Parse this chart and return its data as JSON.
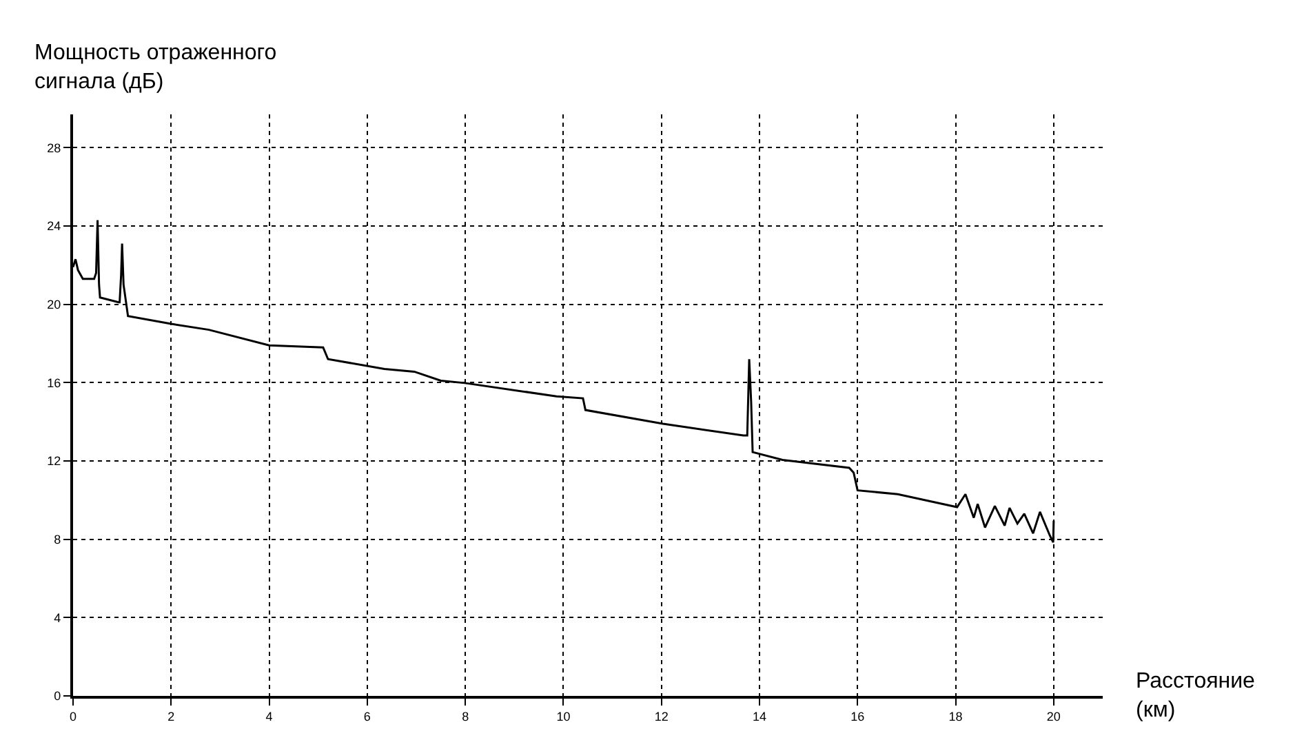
{
  "chart_data": {
    "type": "line",
    "xlabel": "Расстояние\n(км)",
    "ylabel": "Мощность отраженного\nсигнала (дБ)",
    "x": [
      0.0,
      0.05,
      0.1,
      0.2,
      0.43,
      0.47,
      0.5,
      0.53,
      0.55,
      0.93,
      0.95,
      0.98,
      1.0,
      1.03,
      1.12,
      2.0,
      2.77,
      4.0,
      5.1,
      5.2,
      6.35,
      6.96,
      7.5,
      7.99,
      9.86,
      10.4,
      10.45,
      12.03,
      13.67,
      13.75,
      13.79,
      13.83,
      13.86,
      14.47,
      15.83,
      15.92,
      16.0,
      16.82,
      18.03,
      18.2,
      18.37,
      18.45,
      18.6,
      18.8,
      19.0,
      19.1,
      19.26,
      19.4,
      19.58,
      19.72,
      19.92,
      19.99,
      20.0
    ],
    "values": [
      21.9,
      22.3,
      21.75,
      21.3,
      21.3,
      21.6,
      24.3,
      21.0,
      20.35,
      20.1,
      20.1,
      21.5,
      23.1,
      21.0,
      19.4,
      19.0,
      18.7,
      17.9,
      17.8,
      17.2,
      16.7,
      16.56,
      16.1,
      15.98,
      15.3,
      15.2,
      14.6,
      13.9,
      13.3,
      13.3,
      17.2,
      15.0,
      12.45,
      12.05,
      11.65,
      11.4,
      10.5,
      10.3,
      9.64,
      10.3,
      9.1,
      9.8,
      8.6,
      9.7,
      8.7,
      9.6,
      8.8,
      9.3,
      8.3,
      9.4,
      8.2,
      7.84,
      8.95
    ],
    "color": "#000000",
    "line_style": "solid",
    "marker": "none",
    "xlim": [
      0,
      21
    ],
    "ylim": [
      0,
      29.7
    ],
    "xticks": [
      0,
      2,
      4,
      6,
      8,
      10,
      12,
      14,
      16,
      18,
      20
    ],
    "yticks": [
      0,
      4,
      8,
      12,
      16,
      20,
      24,
      28
    ],
    "grid": true,
    "legend": false
  }
}
